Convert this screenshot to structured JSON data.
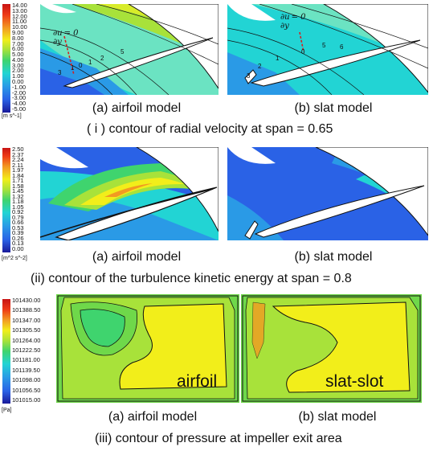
{
  "section1": {
    "colorbar": {
      "ticks": [
        "14.00",
        "13.00",
        "12.00",
        "11.00",
        "10.00",
        "9.00",
        "8.00",
        "7.00",
        "6.00",
        "5.00",
        "4.00",
        "3.00",
        "2.00",
        "1.00",
        "0.00",
        "-1.00",
        "-2.00",
        "-3.00",
        "-4.00",
        "-5.00"
      ],
      "unit": "[m s^-1]"
    },
    "annotation_lhs": "∂u",
    "annotation_den": "∂y",
    "annotation_rhs": "= 0",
    "contour_labels_a": [
      "3",
      "1",
      "0",
      "1",
      "2",
      "5"
    ],
    "contour_labels_b": [
      "3",
      "2",
      "1",
      "0",
      "5",
      "6"
    ],
    "caption_a": "(a) airfoil model",
    "caption_b": "(b) slat model",
    "title": "( i ) contour of radial velocity at span = 0.65"
  },
  "section2": {
    "colorbar": {
      "ticks": [
        "2.50",
        "2.37",
        "2.24",
        "2.11",
        "1.97",
        "1.84",
        "1.71",
        "1.58",
        "1.45",
        "1.32",
        "1.18",
        "1.05",
        "0.92",
        "0.79",
        "0.66",
        "0.53",
        "0.39",
        "0.26",
        "0.13",
        "0.00"
      ],
      "unit": "[m^2 s^-2]"
    },
    "caption_a": "(a) airfoil model",
    "caption_b": "(b) slat model",
    "title": "(ii) contour of the turbulence kinetic energy at span = 0.8"
  },
  "section3": {
    "colorbar": {
      "ticks": [
        "101430.00",
        "101388.50",
        "101347.00",
        "101305.50",
        "101264.00",
        "101222.50",
        "101181.00",
        "101139.50",
        "101098.00",
        "101056.50",
        "101015.00"
      ],
      "unit": "[Pa]"
    },
    "label_a": "airfoil",
    "label_b": "slat-slot",
    "caption_a": "(a) airfoil model",
    "caption_b": "(b) slat model",
    "title": "(iii) contour of pressure at impeller exit area"
  },
  "colors": {
    "red": "#e0251a",
    "orange": "#f29a22",
    "yellow": "#f2ee1a",
    "green": "#6fd84a",
    "cyan": "#22d4d4",
    "blue": "#2a62e6",
    "navy": "#1a1a9a"
  }
}
